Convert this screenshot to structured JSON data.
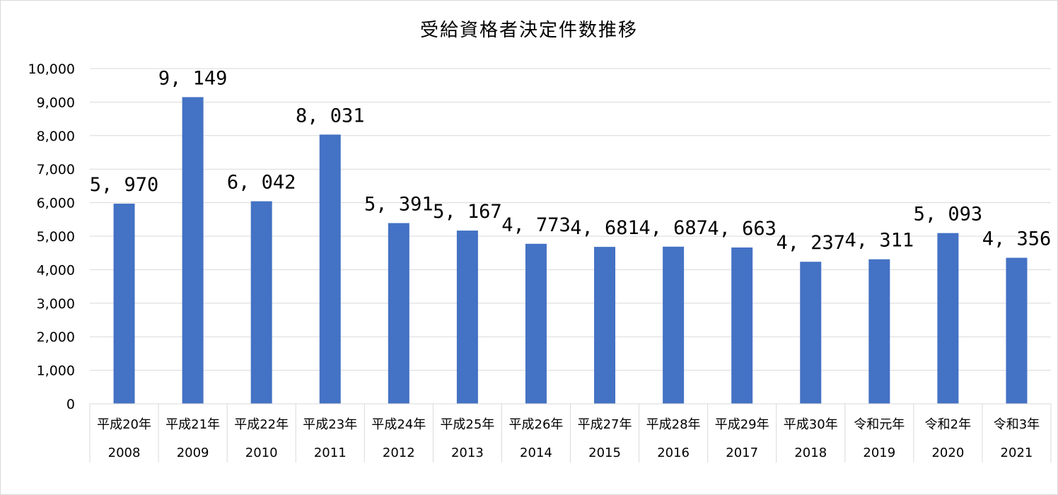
{
  "chart_data": {
    "type": "bar",
    "title": "受給資格者決定件数推移",
    "categories": [
      "平成20年",
      "平成21年",
      "平成22年",
      "平成23年",
      "平成24年",
      "平成25年",
      "平成26年",
      "平成27年",
      "平成28年",
      "平成29年",
      "平成30年",
      "令和元年",
      "令和2年",
      "令和3年"
    ],
    "years": [
      "2008",
      "2009",
      "2010",
      "2011",
      "2012",
      "2013",
      "2014",
      "2015",
      "2016",
      "2017",
      "2018",
      "2019",
      "2020",
      "2021"
    ],
    "values": [
      5970,
      9149,
      6042,
      8031,
      5391,
      5167,
      4773,
      4681,
      4687,
      4663,
      4237,
      4311,
      5093,
      4356
    ],
    "data_labels": [
      "5, 970",
      "9, 149",
      "6, 042",
      "8, 031",
      "5, 391",
      "5, 167",
      "4, 773",
      "4, 681",
      "4, 687",
      "4, 663",
      "4, 237",
      "4, 311",
      "5, 093",
      "4, 356"
    ],
    "ylim": [
      0,
      10000
    ],
    "yticks": [
      0,
      1000,
      2000,
      3000,
      4000,
      5000,
      6000,
      7000,
      8000,
      9000,
      10000
    ],
    "ytick_labels": [
      "0",
      "1,000",
      "2,000",
      "3,000",
      "4,000",
      "5,000",
      "6,000",
      "7,000",
      "8,000",
      "9,000",
      "10,000"
    ],
    "xlabel": "",
    "ylabel": "",
    "grid": true,
    "bar_color": "#4472c4",
    "grid_color": "#d9d9d9"
  }
}
